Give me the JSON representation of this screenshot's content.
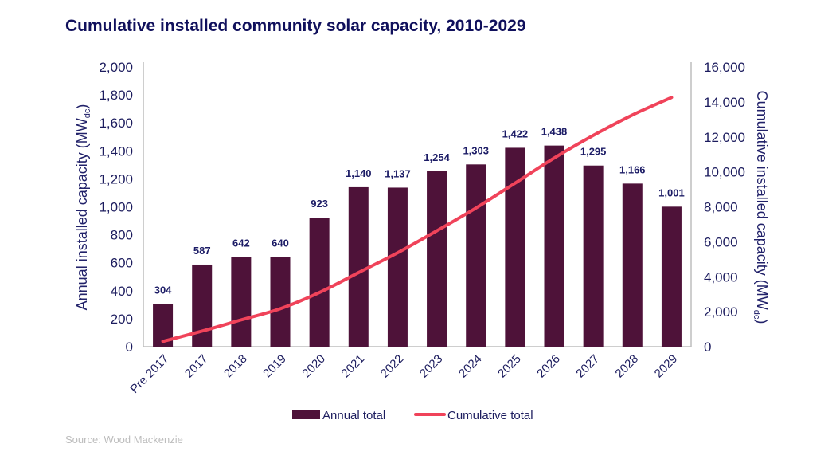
{
  "chart_data": {
    "type": "bar",
    "title": "Cumulative installed community solar capacity, 2010-2029",
    "categories": [
      "Pre 2017",
      "2017",
      "2018",
      "2019",
      "2020",
      "2021",
      "2022",
      "2023",
      "2024",
      "2025",
      "2026",
      "2027",
      "2028",
      "2029"
    ],
    "series": [
      {
        "name": "Annual total",
        "type": "bar",
        "axis": "left",
        "color": "#4e1239",
        "values": [
          304,
          587,
          642,
          640,
          923,
          1140,
          1137,
          1254,
          1303,
          1422,
          1438,
          1295,
          1166,
          1001
        ],
        "labels": [
          "304",
          "587",
          "642",
          "640",
          "923",
          "1,140",
          "1,137",
          "1,254",
          "1,303",
          "1,422",
          "1,438",
          "1,295",
          "1,166",
          "1,001"
        ]
      },
      {
        "name": "Cumulative total",
        "type": "line",
        "axis": "right",
        "color": "#f0435a",
        "values": [
          304,
          891,
          1533,
          2173,
          3096,
          4236,
          5373,
          6627,
          7930,
          9352,
          10790,
          12085,
          13251,
          14252
        ]
      }
    ],
    "left_axis": {
      "label_main": "Annual installed capacity (MW",
      "label_sub": "dc",
      "label_end": ")",
      "ylim": [
        0,
        2000
      ],
      "ticks": [
        0,
        200,
        400,
        600,
        800,
        1000,
        1200,
        1400,
        1600,
        1800,
        2000
      ],
      "tick_labels": [
        "0",
        "200",
        "400",
        "600",
        "800",
        "1,000",
        "1,200",
        "1,400",
        "1,600",
        "1,800",
        "2,000"
      ]
    },
    "right_axis": {
      "label_main": "Cumulative installed capacity (MW",
      "label_sub": "dc",
      "label_end": ")",
      "ylim": [
        0,
        16000
      ],
      "ticks": [
        0,
        2000,
        4000,
        6000,
        8000,
        10000,
        12000,
        14000,
        16000
      ],
      "tick_labels": [
        "0",
        "2,000",
        "4,000",
        "6,000",
        "8,000",
        "10,000",
        "12,000",
        "14,000",
        "16,000"
      ]
    },
    "xlabel": "",
    "grid": false,
    "legend": {
      "placement": "bottom-center",
      "entries": [
        "Annual total",
        "Cumulative total"
      ]
    },
    "source": "Source: Wood Mackenzie"
  }
}
